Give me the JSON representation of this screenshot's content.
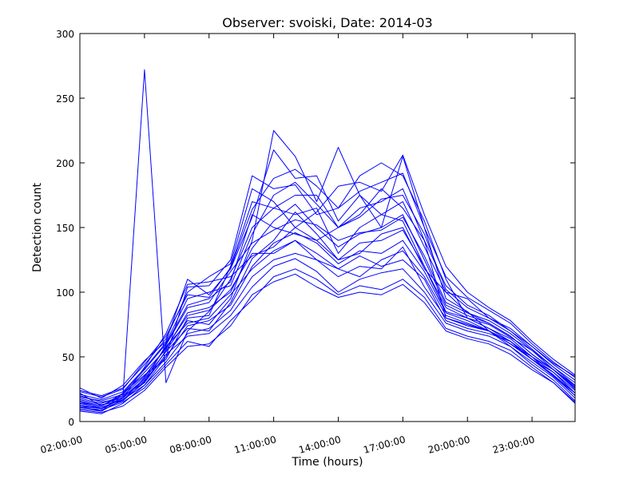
{
  "chart_data": {
    "type": "line",
    "title": "Observer: svoiski, Date: 2014-03",
    "xlabel": "Time (hours)",
    "ylabel": "Detection count",
    "x_hours": [
      2,
      3,
      4,
      5,
      6,
      7,
      8,
      9,
      10,
      11,
      12,
      13,
      14,
      15,
      16,
      17,
      18,
      19,
      20,
      21,
      22,
      23,
      24,
      25
    ],
    "x_ticks": [
      {
        "hour": 2,
        "label": "02:00:00"
      },
      {
        "hour": 5,
        "label": "05:00:00"
      },
      {
        "hour": 8,
        "label": "08:00:00"
      },
      {
        "hour": 11,
        "label": "11:00:00"
      },
      {
        "hour": 14,
        "label": "14:00:00"
      },
      {
        "hour": 17,
        "label": "17:00:00"
      },
      {
        "hour": 20,
        "label": "20:00:00"
      },
      {
        "hour": 23,
        "label": "23:00:00"
      }
    ],
    "xlim": [
      2,
      25
    ],
    "ylim": [
      0,
      300
    ],
    "y_ticks": [
      0,
      50,
      100,
      150,
      200,
      250,
      300
    ],
    "grid": false,
    "line_color": "#0000ff",
    "series": [
      {
        "values": [
          26,
          18,
          28,
          47,
          62,
          110,
          98,
          118,
          158,
          210,
          188,
          190,
          155,
          175,
          160,
          170,
          135,
          100,
          95,
          80,
          72,
          58,
          45,
          35
        ]
      },
      {
        "values": [
          22,
          12,
          20,
          30,
          55,
          78,
          75,
          95,
          140,
          225,
          205,
          170,
          212,
          175,
          150,
          205,
          150,
          95,
          85,
          70,
          60,
          50,
          35,
          22
        ]
      },
      {
        "values": [
          15,
          10,
          18,
          32,
          50,
          104,
          105,
          125,
          190,
          180,
          183,
          160,
          165,
          190,
          200,
          190,
          155,
          110,
          80,
          75,
          65,
          55,
          40,
          28
        ]
      },
      {
        "values": [
          10,
          8,
          22,
          36,
          48,
          80,
          82,
          120,
          170,
          165,
          175,
          175,
          150,
          160,
          180,
          165,
          140,
          80,
          75,
          70,
          60,
          48,
          35,
          20
        ]
      },
      {
        "values": [
          18,
          14,
          20,
          272,
          30,
          70,
          85,
          110,
          150,
          165,
          160,
          165,
          130,
          150,
          160,
          155,
          120,
          85,
          80,
          72,
          62,
          50,
          40,
          25
        ]
      },
      {
        "values": [
          20,
          15,
          18,
          42,
          68,
          106,
          108,
          112,
          128,
          135,
          150,
          140,
          125,
          130,
          145,
          150,
          118,
          100,
          84,
          78,
          68,
          55,
          42,
          30
        ]
      },
      {
        "values": [
          12,
          10,
          16,
          34,
          58,
          76,
          80,
          98,
          118,
          132,
          140,
          130,
          118,
          128,
          120,
          125,
          110,
          78,
          72,
          68,
          62,
          48,
          38,
          24
        ]
      },
      {
        "values": [
          8,
          6,
          14,
          28,
          46,
          68,
          72,
          86,
          112,
          125,
          130,
          125,
          112,
          120,
          118,
          135,
          104,
          80,
          74,
          70,
          58,
          46,
          34,
          18
        ]
      },
      {
        "values": [
          24,
          20,
          26,
          44,
          64,
          100,
          112,
          122,
          180,
          170,
          150,
          162,
          182,
          185,
          178,
          206,
          160,
          120,
          100,
          88,
          78,
          62,
          48,
          36
        ]
      },
      {
        "values": [
          16,
          12,
          22,
          40,
          60,
          90,
          95,
          108,
          160,
          150,
          145,
          140,
          150,
          165,
          170,
          180,
          140,
          105,
          90,
          82,
          70,
          56,
          42,
          28
        ]
      },
      {
        "values": [
          14,
          11,
          17,
          30,
          52,
          66,
          68,
          82,
          104,
          120,
          126,
          116,
          100,
          110,
          115,
          118,
          100,
          76,
          70,
          66,
          58,
          44,
          32,
          16
        ]
      },
      {
        "values": [
          19,
          16,
          21,
          38,
          56,
          84,
          88,
          100,
          134,
          155,
          168,
          150,
          135,
          145,
          150,
          160,
          125,
          90,
          82,
          76,
          66,
          52,
          40,
          26
        ]
      },
      {
        "values": [
          11,
          9,
          15,
          26,
          44,
          62,
          58,
          78,
          94,
          112,
          118,
          110,
          98,
          105,
          102,
          110,
          96,
          72,
          66,
          62,
          55,
          42,
          30,
          15
        ]
      },
      {
        "values": [
          21,
          17,
          23,
          41,
          61,
          95,
          100,
          105,
          145,
          175,
          185,
          168,
          150,
          158,
          172,
          175,
          145,
          102,
          88,
          80,
          70,
          58,
          44,
          32
        ]
      },
      {
        "values": [
          13,
          10,
          19,
          33,
          54,
          72,
          70,
          92,
          126,
          140,
          162,
          145,
          125,
          138,
          140,
          148,
          120,
          88,
          80,
          72,
          64,
          50,
          38,
          22
        ]
      },
      {
        "values": [
          17,
          13,
          16,
          31,
          59,
          88,
          92,
          116,
          138,
          148,
          156,
          152,
          140,
          146,
          148,
          158,
          128,
          92,
          84,
          76,
          66,
          52,
          40,
          27
        ]
      },
      {
        "values": [
          9,
          7,
          12,
          24,
          42,
          58,
          60,
          74,
          98,
          108,
          114,
          104,
          96,
          100,
          98,
          106,
          92,
          70,
          64,
          60,
          52,
          40,
          30,
          14
        ]
      },
      {
        "values": [
          23,
          19,
          25,
          46,
          66,
          98,
          96,
          119,
          164,
          188,
          195,
          182,
          165,
          178,
          185,
          192,
          150,
          112,
          96,
          86,
          76,
          60,
          46,
          34
        ]
      },
      {
        "values": [
          15,
          12,
          20,
          35,
          57,
          82,
          86,
          102,
          130,
          130,
          140,
          125,
          118,
          112,
          125,
          132,
          112,
          82,
          76,
          70,
          62,
          48,
          36,
          20
        ]
      },
      {
        "values": [
          12,
          8,
          17,
          28,
          50,
          74,
          78,
          90,
          120,
          138,
          146,
          138,
          122,
          132,
          130,
          140,
          116,
          84,
          78,
          70,
          60,
          48,
          36,
          22
        ]
      }
    ]
  }
}
